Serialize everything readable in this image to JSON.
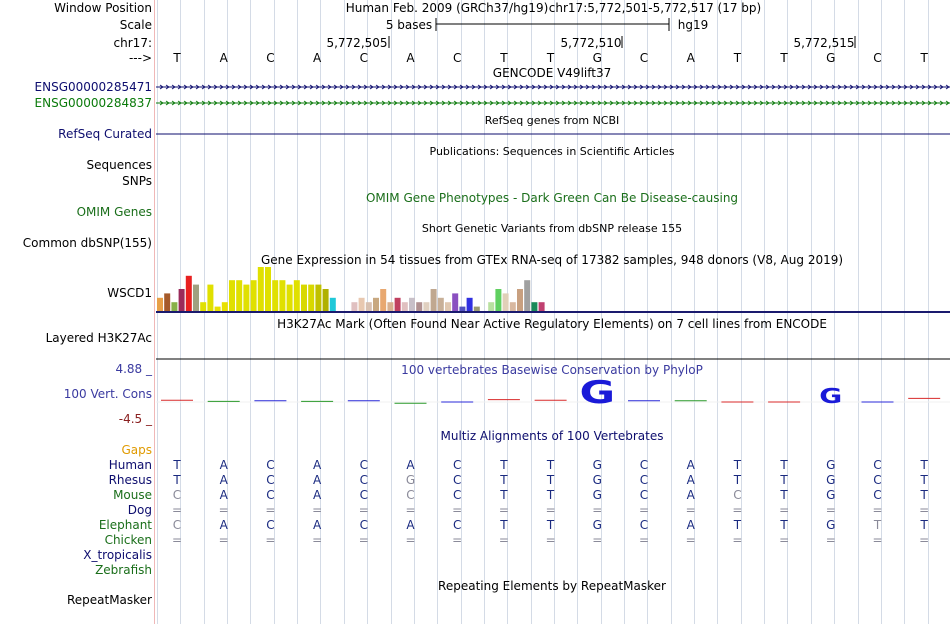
{
  "header": {
    "window_position_label": "Window Position",
    "assembly": "Human Feb. 2009 (GRCh37/hg19)",
    "position": "chr17:5,772,501-5,772,517 (17 bp)",
    "scale_label": "Scale",
    "scale_text": "5 bases",
    "scale_db": "hg19",
    "chrom_label": "chr17:",
    "coords": [
      "5,772,505",
      "5,772,510",
      "5,772,515"
    ],
    "strand_label": "--->",
    "sequence": [
      "T",
      "A",
      "C",
      "A",
      "C",
      "A",
      "C",
      "T",
      "T",
      "G",
      "C",
      "A",
      "T",
      "T",
      "G",
      "C",
      "T"
    ]
  },
  "tracks": {
    "gencode": {
      "title": "GENCODE V49lift37",
      "genes": [
        {
          "name": "ENSG00000285471",
          "color": "#0d0d6e"
        },
        {
          "name": "ENSG00000284837",
          "color": "#0a7a0a"
        }
      ]
    },
    "refseq": {
      "title": "RefSeq genes from NCBI",
      "label": "RefSeq Curated",
      "color": "#0d0d6e"
    },
    "publications": {
      "title": "Publications: Sequences in Scientific Articles",
      "labels": [
        "Sequences",
        "SNPs"
      ]
    },
    "omim": {
      "title": "OMIM Gene Phenotypes - Dark Green Can Be Disease-causing",
      "label": "OMIM Genes",
      "color": "#1a6e1a"
    },
    "dbsnp": {
      "title": "Short Genetic Variants from dbSNP release 155",
      "label": "Common dbSNP(155)"
    },
    "gtex": {
      "title": "Gene Expression in 54 tissues from GTEx RNA-seq of 17382 samples, 948 donors (V8, Aug 2019)",
      "label": "WSCD1"
    },
    "h3k27ac": {
      "title": "H3K27Ac Mark (Often Found Near Active Regulatory Elements) on 7 cell lines from ENCODE",
      "label": "Layered H3K27Ac"
    },
    "phylop": {
      "title": "100 vertebrates Basewise Conservation by PhyloP",
      "label": "100 Vert. Cons",
      "max": "4.88 _",
      "min": "-4.5 _"
    },
    "multiz": {
      "title": "Multiz Alignments of 100 Vertebrates",
      "gaps_label": "Gaps",
      "species": [
        {
          "name": "Human",
          "color": "#0d0d6e",
          "bases": [
            "T",
            "A",
            "C",
            "A",
            "C",
            "A",
            "C",
            "T",
            "T",
            "G",
            "C",
            "A",
            "T",
            "T",
            "G",
            "C",
            "T"
          ]
        },
        {
          "name": "Rhesus",
          "color": "#0d0d6e",
          "bases": [
            "T",
            "A",
            "C",
            "A",
            "C",
            "G",
            "C",
            "T",
            "T",
            "G",
            "C",
            "A",
            "T",
            "T",
            "G",
            "C",
            "T"
          ]
        },
        {
          "name": "Mouse",
          "color": "#1a6e1a",
          "bases": [
            "C",
            "A",
            "C",
            "A",
            "C",
            "C",
            "C",
            "T",
            "T",
            "G",
            "C",
            "A",
            "C",
            "T",
            "G",
            "C",
            "T"
          ]
        },
        {
          "name": "Dog",
          "color": "#0d0d6e",
          "bases": [
            "=",
            "=",
            "=",
            "=",
            "=",
            "=",
            "=",
            "=",
            "=",
            "=",
            "=",
            "=",
            "=",
            "=",
            "=",
            "=",
            "="
          ]
        },
        {
          "name": "Elephant",
          "color": "#1a6e1a",
          "bases": [
            "C",
            "A",
            "C",
            "A",
            "C",
            "A",
            "C",
            "T",
            "T",
            "G",
            "C",
            "A",
            "T",
            "T",
            "G",
            "T",
            "T"
          ]
        },
        {
          "name": "Chicken",
          "color": "#1a6e1a",
          "bases": [
            "=",
            "=",
            "=",
            "=",
            "=",
            "=",
            "=",
            "=",
            "=",
            "=",
            "=",
            "=",
            "=",
            "=",
            "=",
            "=",
            "="
          ]
        },
        {
          "name": "X_tropicalis",
          "color": "#0d0d6e",
          "bases": []
        },
        {
          "name": "Zebrafish",
          "color": "#1a6e1a",
          "bases": []
        }
      ]
    },
    "repeatmasker": {
      "title": "Repeating Elements by RepeatMasker",
      "label": "RepeatMasker"
    }
  },
  "chart_data": {
    "type": "bar",
    "title": "",
    "values": [
      3,
      4,
      2,
      5,
      8,
      6,
      2,
      6,
      1,
      2,
      7,
      7,
      6,
      7,
      10,
      10,
      7,
      7,
      6,
      7,
      6,
      6,
      6,
      5,
      3,
      0,
      0,
      2,
      3,
      2,
      3,
      5,
      2,
      3,
      2,
      3,
      2,
      2,
      5,
      3,
      2,
      4,
      1,
      3,
      1,
      0,
      2,
      5,
      4,
      2,
      5,
      7,
      2,
      2
    ],
    "colors": [
      "#e8a048",
      "#a55a2a",
      "#88b048",
      "#9a2a5a",
      "#e82020",
      "#a0a080",
      "#e0e000",
      "#e0e000",
      "#e8e000",
      "#e8e000",
      "#e0e000",
      "#e0e000",
      "#e0e000",
      "#e0e000",
      "#e0e000",
      "#e0e000",
      "#e0e000",
      "#e0e000",
      "#e0e000",
      "#e0e000",
      "#d8d800",
      "#d8d800",
      "#c0c000",
      "#b0b000",
      "#20c8d8",
      "#f0f0f0",
      "#f0f0f0",
      "#e0c0c0",
      "#e8c8b0",
      "#d8c0b0",
      "#c8a880",
      "#e8a870",
      "#d8b090",
      "#c04060",
      "#e0c0c0",
      "#c8c0c8",
      "#b09090",
      "#e0d0c0",
      "#c0a890",
      "#c8b098",
      "#e0c8b0",
      "#8a50c0",
      "#5050c0",
      "#3030e0",
      "#9a9a70",
      "#f0f0f0",
      "#b8e0a0",
      "#60d060",
      "#e0d0b8",
      "#d8b8a0",
      "#c8a080",
      "#a0a0a0",
      "#1a8a5a",
      "#c04070"
    ],
    "ylim": [
      0,
      10
    ]
  },
  "phylop_data": {
    "type": "bar",
    "values": [
      0.3,
      0.1,
      0.2,
      0.1,
      0.2,
      -0.2,
      0.0,
      0.4,
      0.3,
      2.8,
      0.2,
      0.2,
      0.0,
      0.0,
      1.4,
      0.0,
      0.6
    ],
    "ylim": [
      -4.5,
      4.88
    ]
  }
}
